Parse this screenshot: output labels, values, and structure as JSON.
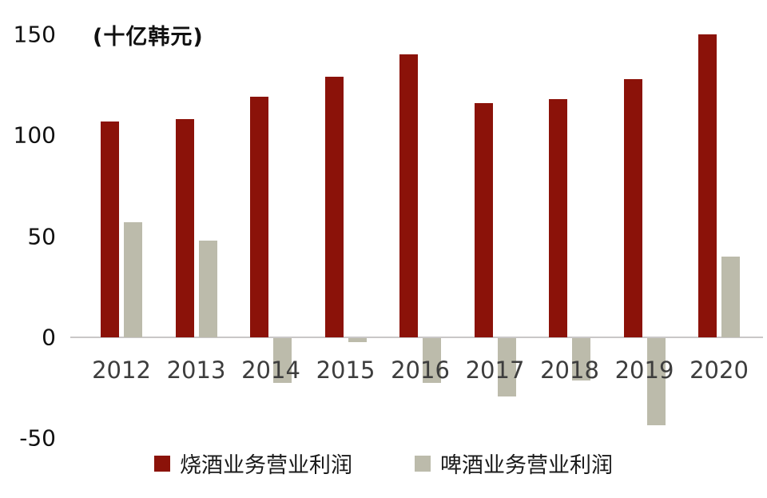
{
  "chart_data": {
    "type": "bar",
    "categories": [
      "2012",
      "2013",
      "2014",
      "2015",
      "2016",
      "2017",
      "2018",
      "2019",
      "2020"
    ],
    "series": [
      {
        "name": "烧酒业务营业利润",
        "color_key": "soju",
        "values": [
          107,
          108,
          119,
          129,
          140,
          116,
          118,
          128,
          150
        ]
      },
      {
        "name": "啤酒业务营业利润",
        "color_key": "beer",
        "values": [
          57,
          48,
          -22,
          -2,
          -22,
          -29,
          -21,
          -43,
          40
        ]
      }
    ],
    "ylabel": "(十亿韩元)",
    "xlabel": "",
    "yticks": [
      150,
      100,
      50,
      0,
      -50
    ],
    "ylim": [
      -60,
      158
    ],
    "grid": false,
    "legend_position": "bottom"
  },
  "style": {
    "colors": {
      "soju": "#8b1209",
      "beer": "#bcbbab",
      "zero_line": "#c9c7c7",
      "tick_text": "#111111",
      "year_text": "#3d3d3d"
    }
  }
}
